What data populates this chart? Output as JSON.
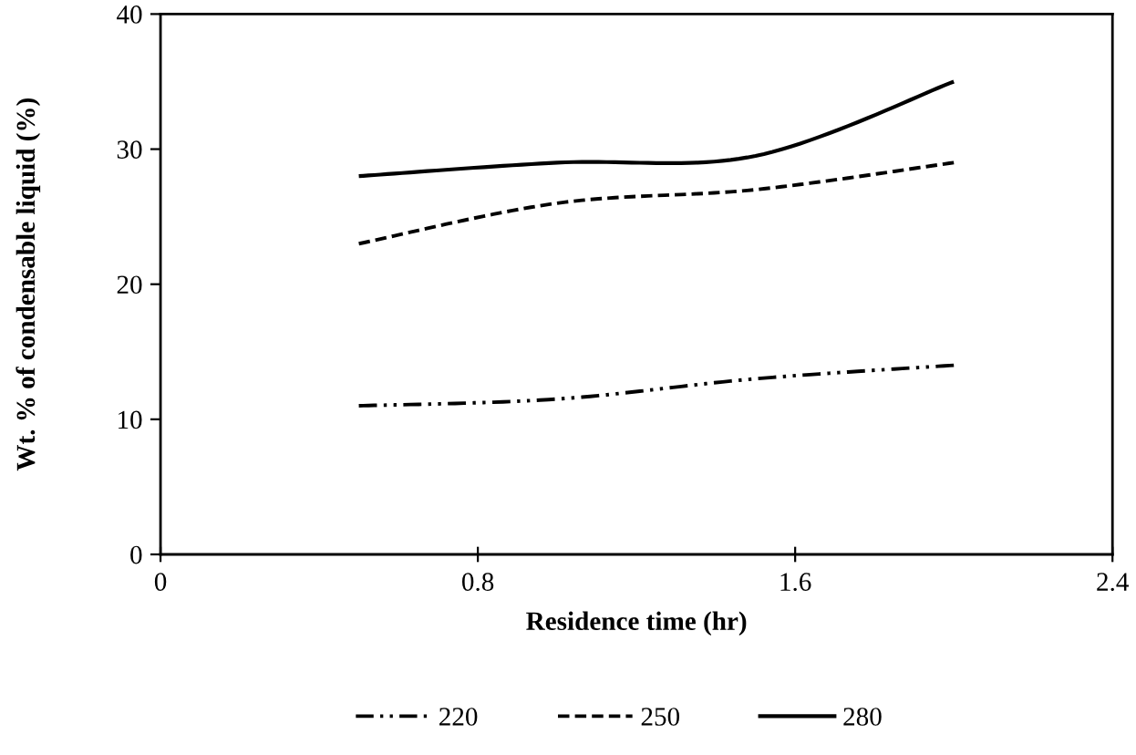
{
  "chart_data": {
    "type": "line",
    "xlabel": "Residence time (hr)",
    "ylabel": "Wt. % of condensable liquid (%)",
    "x": [
      0.5,
      1.0,
      1.5,
      2.0
    ],
    "series": [
      {
        "name": "220",
        "color": "#000000",
        "line_style": "dashdot",
        "values": [
          11,
          11.5,
          13,
          14
        ]
      },
      {
        "name": "250",
        "color": "#000000",
        "line_style": "dashed",
        "values": [
          23,
          26,
          27,
          29
        ]
      },
      {
        "name": "280",
        "color": "#000000",
        "line_style": "solid",
        "values": [
          28,
          29,
          29.5,
          35
        ]
      }
    ],
    "xlim": [
      0,
      2.4
    ],
    "xticks": [
      0,
      0.8,
      1.6,
      2.4
    ],
    "ylim": [
      0,
      40
    ],
    "yticks": [
      0,
      10,
      20,
      30,
      40
    ],
    "grid": false,
    "legend": "bottom",
    "marker": "none"
  }
}
